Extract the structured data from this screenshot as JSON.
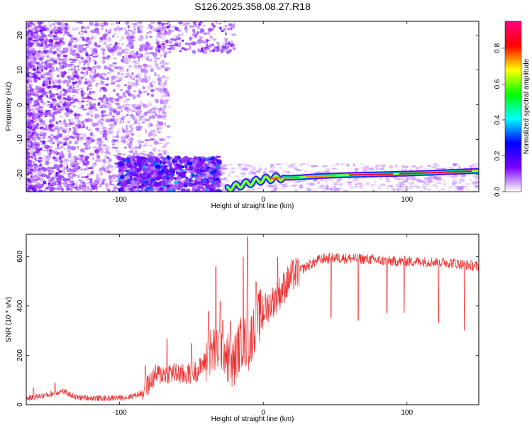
{
  "title": "S126.2025.358.08.27.R18",
  "chart_data": [
    {
      "type": "heatmap",
      "xlabel": "Height of straight line (km)",
      "ylabel": "Frequency (Hz)",
      "xlim": [
        -165,
        150
      ],
      "ylim": [
        -25,
        24
      ],
      "x_ticks": [
        "-100",
        "0",
        "100"
      ],
      "y_ticks": [
        "20",
        "10",
        "0",
        "-10",
        "-20"
      ],
      "colorbar": {
        "label": "Normalized spectral amplitude",
        "range": [
          0.0,
          0.95
        ],
        "ticks": [
          "0.0",
          "0.2",
          "0.4",
          "0.6",
          "0.8"
        ],
        "colormap": [
          "#ffffff",
          "#7a00ff",
          "#0000ff",
          "#00ffff",
          "#00ff00",
          "#ffff00",
          "#ff0000",
          "#ff0080"
        ]
      },
      "features": {
        "ridge_points": [
          [
            -25,
            -24
          ],
          [
            -15,
            -23
          ],
          [
            -10,
            -22.5
          ],
          [
            -5,
            -22
          ],
          [
            0,
            -21.5
          ],
          [
            10,
            -21
          ],
          [
            20,
            -21
          ],
          [
            40,
            -20.5
          ],
          [
            60,
            -20.2
          ],
          [
            80,
            -20
          ],
          [
            100,
            -19.8
          ],
          [
            120,
            -19.5
          ],
          [
            150,
            -19
          ]
        ],
        "noise_region_x": [
          -165,
          -85
        ],
        "low_band_x": [
          -100,
          -30
        ],
        "low_band_y": [
          -25,
          -15
        ]
      }
    },
    {
      "type": "line",
      "xlabel": "Height of straight line (km)",
      "ylabel": "SNR (10 * v/v)",
      "xlim": [
        -165,
        150
      ],
      "ylim": [
        0,
        690
      ],
      "x_ticks": [
        "-100",
        "0",
        "100"
      ],
      "y_ticks": [
        "0",
        "200",
        "400",
        "600"
      ],
      "color": "#ee3333",
      "envelope": [
        [
          -165,
          25
        ],
        [
          -150,
          40
        ],
        [
          -140,
          55
        ],
        [
          -130,
          30
        ],
        [
          -110,
          25
        ],
        [
          -95,
          30
        ],
        [
          -85,
          45
        ],
        [
          -75,
          120
        ],
        [
          -65,
          130
        ],
        [
          -55,
          120
        ],
        [
          -45,
          140
        ],
        [
          -35,
          220
        ],
        [
          -28,
          240
        ],
        [
          -22,
          150
        ],
        [
          -15,
          260
        ],
        [
          -10,
          240
        ],
        [
          -5,
          340
        ],
        [
          0,
          380
        ],
        [
          10,
          440
        ],
        [
          20,
          520
        ],
        [
          30,
          560
        ],
        [
          40,
          590
        ],
        [
          50,
          595
        ],
        [
          70,
          590
        ],
        [
          90,
          580
        ],
        [
          110,
          580
        ],
        [
          130,
          575
        ],
        [
          150,
          560
        ]
      ],
      "spike_values": [
        [
          -160,
          70
        ],
        [
          -145,
          90
        ],
        [
          -82,
          160
        ],
        [
          -67,
          270
        ],
        [
          -50,
          250
        ],
        [
          -38,
          380
        ],
        [
          -33,
          560
        ],
        [
          -30,
          420
        ],
        [
          -23,
          340
        ],
        [
          -14,
          600
        ],
        [
          -11,
          680
        ],
        [
          -5,
          500
        ],
        [
          10,
          600
        ]
      ],
      "dip_values": [
        [
          47,
          350
        ],
        [
          66,
          340
        ],
        [
          86,
          370
        ],
        [
          98,
          370
        ],
        [
          122,
          330
        ],
        [
          140,
          300
        ]
      ]
    }
  ]
}
